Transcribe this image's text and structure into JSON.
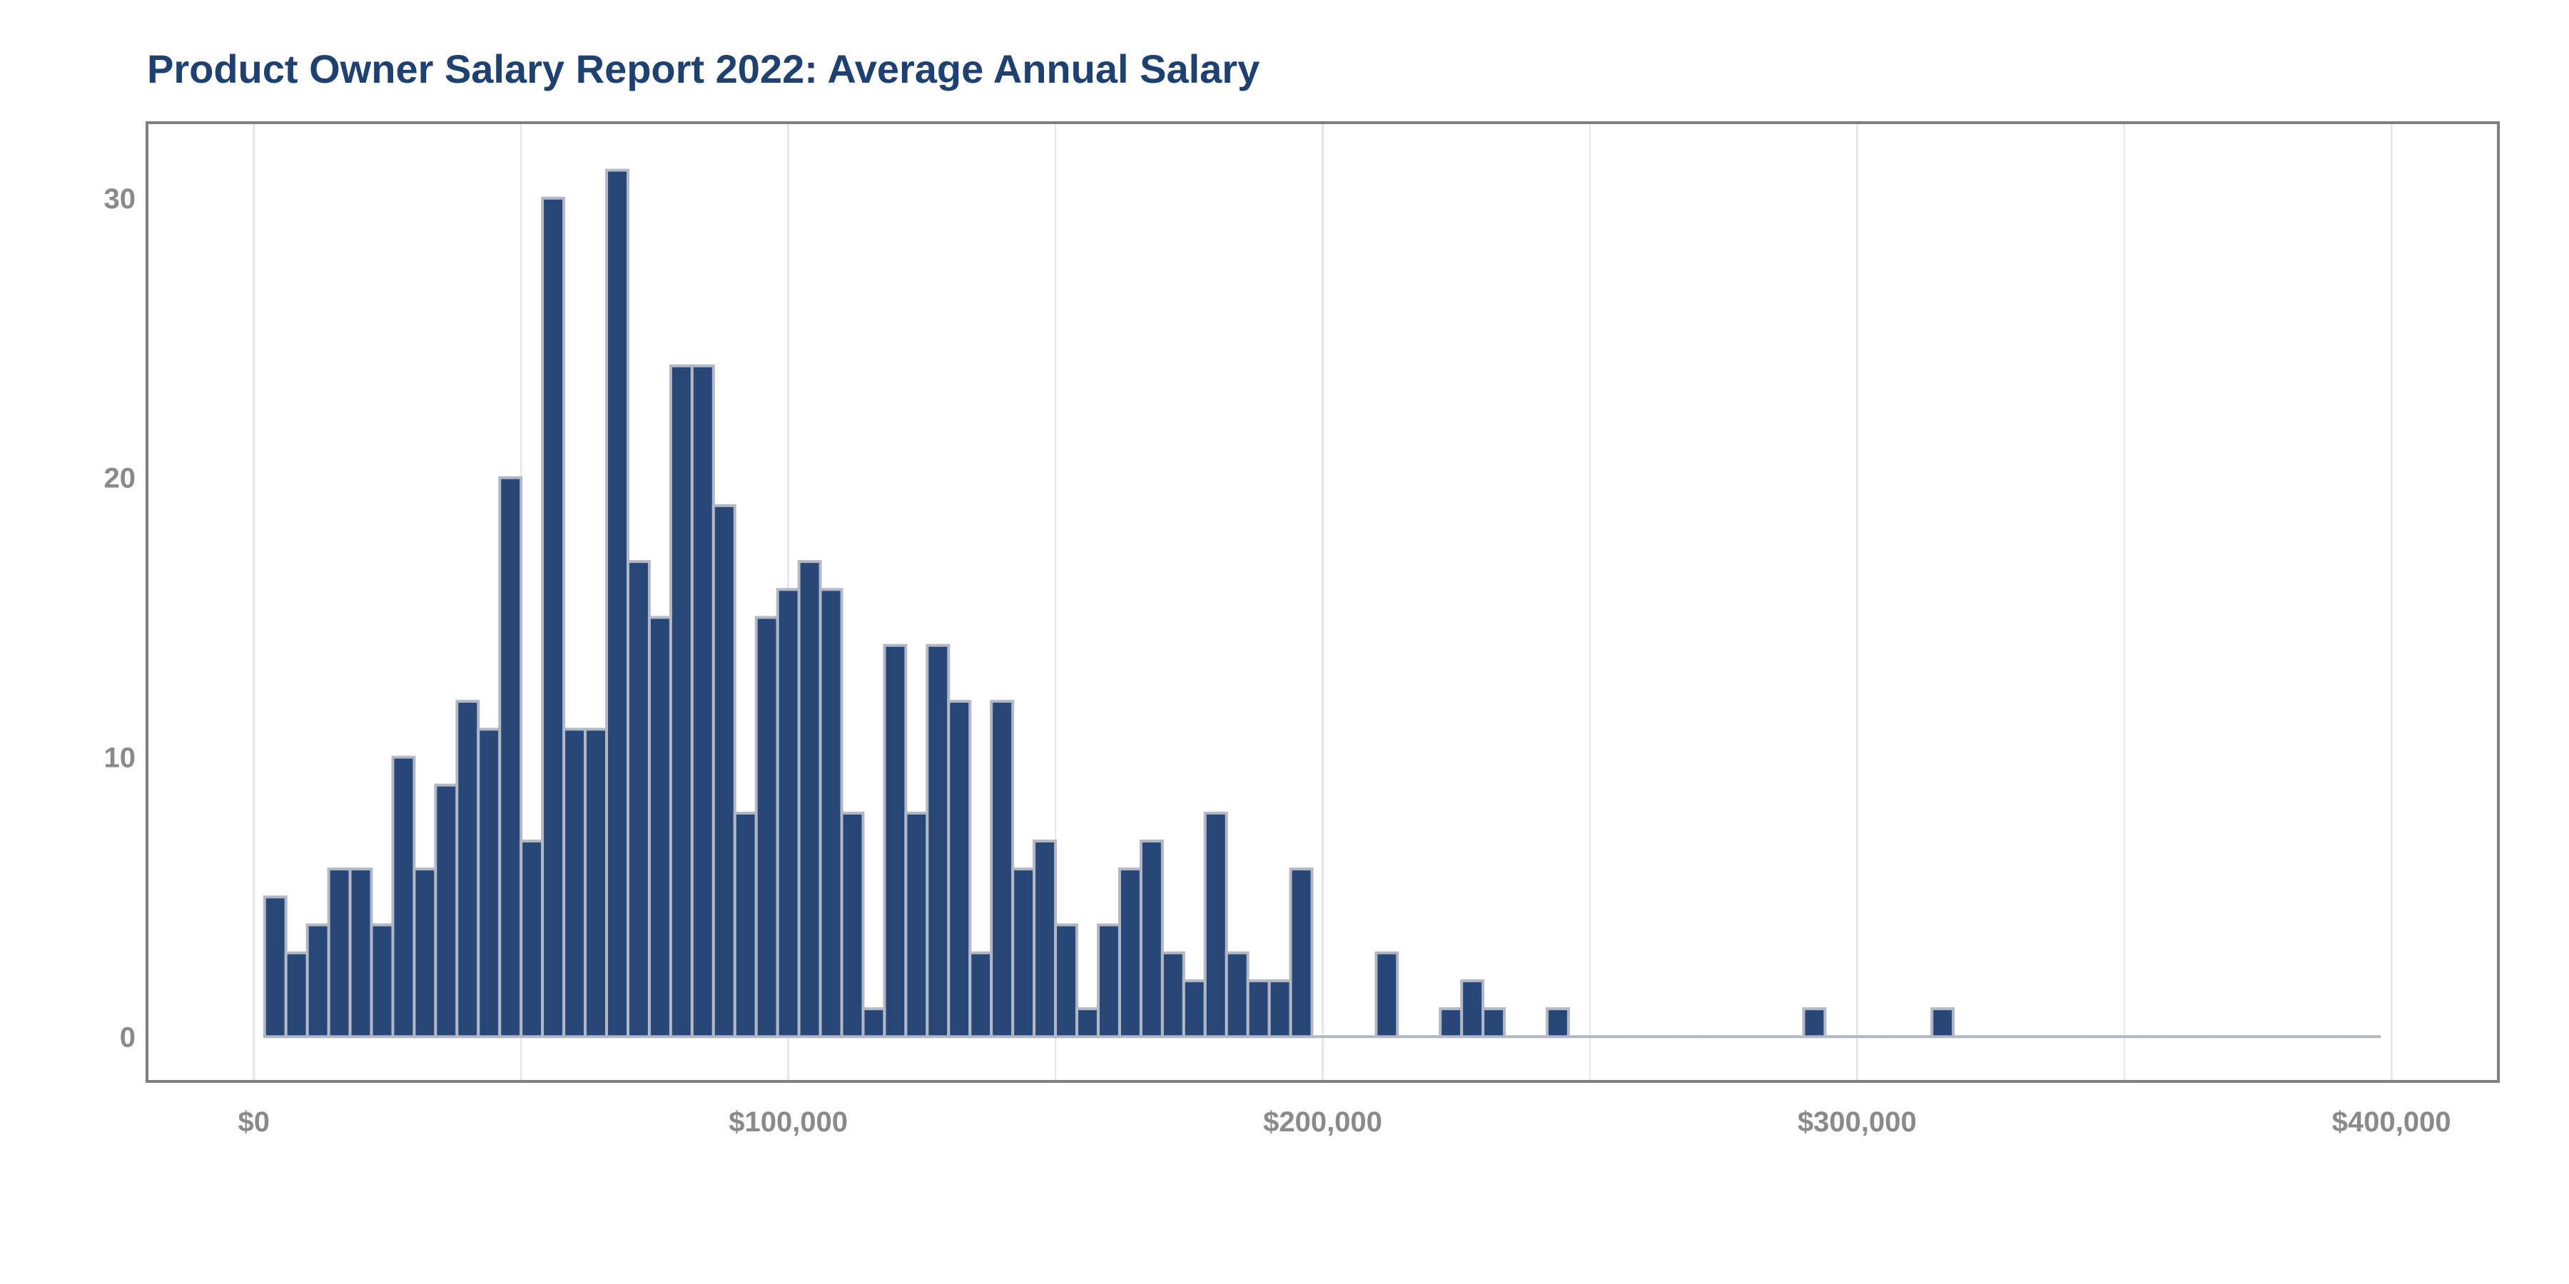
{
  "chart_data": {
    "type": "bar",
    "title": "Product Owner Salary Report 2022: Average Annual Salary",
    "xlabel": "",
    "ylabel": "",
    "bin_width": 5000,
    "xlim": [
      -20000,
      420000
    ],
    "ylim": [
      -1.6,
      32.7
    ],
    "x_ticks": [
      0,
      100000,
      200000,
      300000,
      400000
    ],
    "x_tick_labels": [
      "$0",
      "$100,000",
      "$200,000",
      "$300,000",
      "$400,000"
    ],
    "y_ticks": [
      0,
      10,
      20,
      30
    ],
    "y_tick_labels": [
      "0",
      "10",
      "20",
      "30"
    ],
    "grid": "vertical",
    "bin_centers": [
      4000,
      8000,
      12000,
      16000,
      20000,
      24000,
      28000,
      32000,
      36000,
      40000,
      44000,
      48000,
      52000,
      56000,
      60000,
      64000,
      68000,
      72000,
      76000,
      80000,
      84000,
      88000,
      92000,
      96000,
      100000,
      104000,
      108000,
      112000,
      116000,
      120000,
      124000,
      128000,
      132000,
      136000,
      140000,
      144000,
      148000,
      152000,
      156000,
      160000,
      164000,
      168000,
      172000,
      176000,
      180000,
      184000,
      188000,
      192000,
      196000,
      200000,
      204000,
      208000,
      212000,
      216000,
      220000,
      224000,
      228000,
      232000,
      236000,
      240000,
      244000,
      248000,
      252000,
      256000,
      260000,
      264000,
      268000,
      272000,
      276000,
      280000,
      284000,
      288000,
      292000,
      296000,
      300000,
      304000,
      308000,
      312000,
      316000,
      320000,
      324000,
      328000,
      332000,
      336000,
      340000,
      344000,
      348000,
      352000,
      356000,
      360000,
      364000,
      368000,
      372000,
      376000,
      380000,
      384000,
      388000,
      392000,
      396000
    ],
    "counts": [
      5,
      3,
      4,
      6,
      6,
      4,
      10,
      6,
      9,
      12,
      11,
      20,
      7,
      30,
      11,
      11,
      31,
      17,
      15,
      24,
      24,
      19,
      8,
      15,
      16,
      17,
      16,
      8,
      1,
      14,
      8,
      14,
      12,
      3,
      12,
      6,
      7,
      4,
      1,
      4,
      6,
      7,
      3,
      2,
      8,
      3,
      2,
      2,
      6,
      0,
      0,
      0,
      3,
      0,
      0,
      1,
      2,
      1,
      0,
      0,
      1,
      0,
      0,
      0,
      0,
      0,
      0,
      0,
      0,
      0,
      0,
      0,
      1,
      0,
      0,
      0,
      0,
      0,
      1,
      0,
      0,
      0,
      0,
      0,
      0,
      0,
      0,
      0,
      0,
      0,
      0,
      0,
      0,
      0,
      0,
      0,
      0,
      0,
      0
    ],
    "bin_step": 4000,
    "bar_fill": "#264778",
    "bar_edge": "#b4b8c6",
    "grid_color": "#e6e6e6",
    "frame_color": "#7f7f7f",
    "tick_color": "#8a8a8a",
    "title_color": "#1f4172"
  }
}
